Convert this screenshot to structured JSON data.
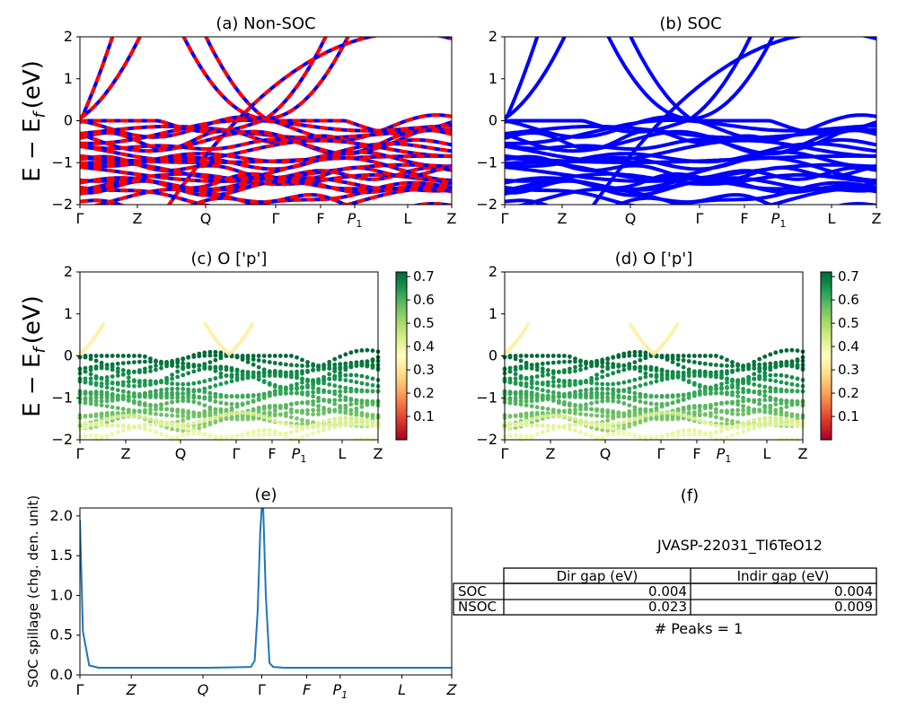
{
  "figure": {
    "ylabel_band": "E − E",
    "ylabel_sub": "f",
    "ylabel_unit": "(eV)",
    "spillage_ylabel": "SOC spillage (chg. den. unit)",
    "title_f": "(f)",
    "material": "JVASP-22031_Tl6TeO12"
  },
  "kpath": [
    "Γ",
    "Z",
    "Q",
    "Γ",
    "F",
    "P1",
    "L",
    "Z"
  ],
  "colors": {
    "nonsoc_red": "#ff0000",
    "soc_blue": "#0000ff",
    "spillage_line": "#1f77b4",
    "colormap": [
      "#a50026",
      "#d73027",
      "#f46d43",
      "#fdae61",
      "#fee08b",
      "#ffffbf",
      "#d9ef8b",
      "#a6d96a",
      "#66bd63",
      "#1a9850",
      "#006837"
    ]
  },
  "table": {
    "headers": [
      "",
      "Dir gap (eV)",
      "Indir gap (eV)"
    ],
    "rows": [
      [
        "SOC",
        "0.004",
        "0.004"
      ],
      [
        "NSOC",
        "0.023",
        "0.009"
      ]
    ],
    "peaks": "# Peaks = 1"
  },
  "chart_data": [
    {
      "id": "a",
      "type": "line",
      "title": "(a) Non-SOC",
      "ylabel": "E − Ef (eV)",
      "ylim": [
        -2,
        2
      ],
      "yticks": [
        -2,
        -1,
        0,
        1,
        2
      ],
      "x_ticks": [
        "Γ",
        "Z",
        "Q",
        "Γ",
        "F",
        "P1",
        "L",
        "Z"
      ],
      "series_colors": [
        "#ff0000",
        "#0000ff"
      ],
      "style": "bands"
    },
    {
      "id": "b",
      "type": "line",
      "title": "(b) SOC",
      "ylim": [
        -2,
        2
      ],
      "yticks": [
        -2,
        -1,
        0,
        1,
        2
      ],
      "x_ticks": [
        "Γ",
        "Z",
        "Q",
        "Γ",
        "F",
        "P1",
        "L",
        "Z"
      ],
      "series_colors": [
        "#0000ff"
      ],
      "style": "bands"
    },
    {
      "id": "c",
      "type": "scatter",
      "title": "(c)  O ['p']",
      "ylabel": "E − Ef (eV)",
      "ylim": [
        -2,
        2
      ],
      "yticks": [
        -2,
        -1,
        0,
        1,
        2
      ],
      "x_ticks": [
        "Γ",
        "Z",
        "Q",
        "Γ",
        "F",
        "P1",
        "L",
        "Z"
      ],
      "colorbar_ticks": [
        0.1,
        0.2,
        0.3,
        0.4,
        0.5,
        0.6,
        0.7
      ],
      "colorbar_range": [
        0,
        0.72
      ]
    },
    {
      "id": "d",
      "type": "scatter",
      "title": "(d) O ['p']",
      "ylim": [
        -2,
        2
      ],
      "yticks": [
        -2,
        -1,
        0,
        1,
        2
      ],
      "x_ticks": [
        "Γ",
        "Z",
        "Q",
        "Γ",
        "F",
        "P1",
        "L",
        "Z"
      ],
      "colorbar_ticks": [
        0.1,
        0.2,
        0.3,
        0.4,
        0.5,
        0.6,
        0.7
      ],
      "colorbar_range": [
        0,
        0.72
      ]
    },
    {
      "id": "e",
      "type": "line",
      "title": "(e)",
      "ylabel": "SOC spillage (chg. den. unit)",
      "ylim": [
        0,
        2.1
      ],
      "yticks": [
        0.0,
        0.5,
        1.0,
        1.5,
        2.0
      ],
      "x_ticks": [
        "Γ",
        "Z",
        "Q",
        "Γ",
        "F",
        "P1",
        "L",
        "Z"
      ],
      "tick_positions": [
        0,
        0.138,
        0.331,
        0.489,
        0.61,
        0.7,
        0.866,
        1.0
      ],
      "series": [
        {
          "x": [
            0,
            0.008,
            0.025,
            0.05,
            0.08,
            0.2,
            0.35,
            0.46,
            0.47,
            0.478,
            0.485,
            0.489,
            0.493,
            0.5,
            0.51,
            0.52,
            0.55,
            0.7,
            0.85,
            1.0
          ],
          "values": [
            1.95,
            0.55,
            0.12,
            0.09,
            0.09,
            0.09,
            0.09,
            0.1,
            0.18,
            0.8,
            1.8,
            2.1,
            2.1,
            1.0,
            0.15,
            0.1,
            0.09,
            0.09,
            0.09,
            0.09
          ]
        }
      ]
    }
  ]
}
